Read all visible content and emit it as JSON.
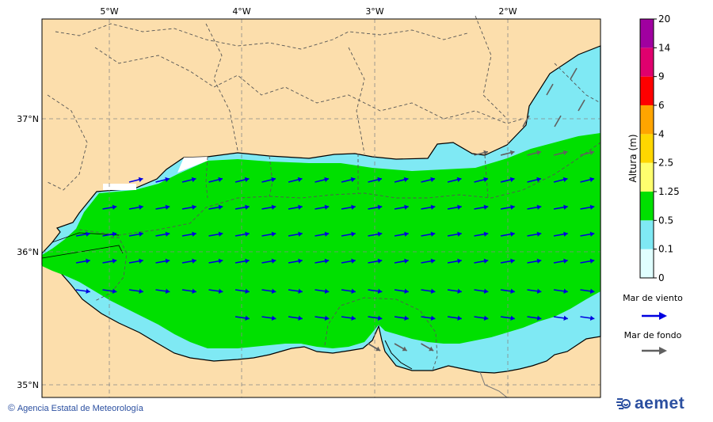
{
  "map": {
    "lon_labels": [
      "5°W",
      "4°W",
      "3°W",
      "2°W"
    ],
    "lat_labels": [
      "37°N",
      "36°N",
      "35°N"
    ]
  },
  "colorbar": {
    "title": "Altura (m)",
    "ticks": [
      "0",
      "0.1",
      "0.5",
      "1.25",
      "2.5",
      "4",
      "6",
      "9",
      "14",
      "20"
    ],
    "colors": [
      "#e0ffff",
      "#7fe9f4",
      "#00e000",
      "#ffff6e",
      "#ffd700",
      "#ffa500",
      "#ff0000",
      "#e0006e",
      "#a000a0"
    ]
  },
  "legend": {
    "wind_label": "Mar de viento",
    "wind_color": "#0000e0",
    "swell_label": "Mar de fondo",
    "swell_color": "#606060"
  },
  "colors": {
    "land": "#fcdeac",
    "sea_low": "#7fe9f4",
    "sea_mid": "#00e000",
    "grid": "#888888"
  },
  "credit": "Agencia Estatal de Meteorología",
  "brand": "aemet"
}
